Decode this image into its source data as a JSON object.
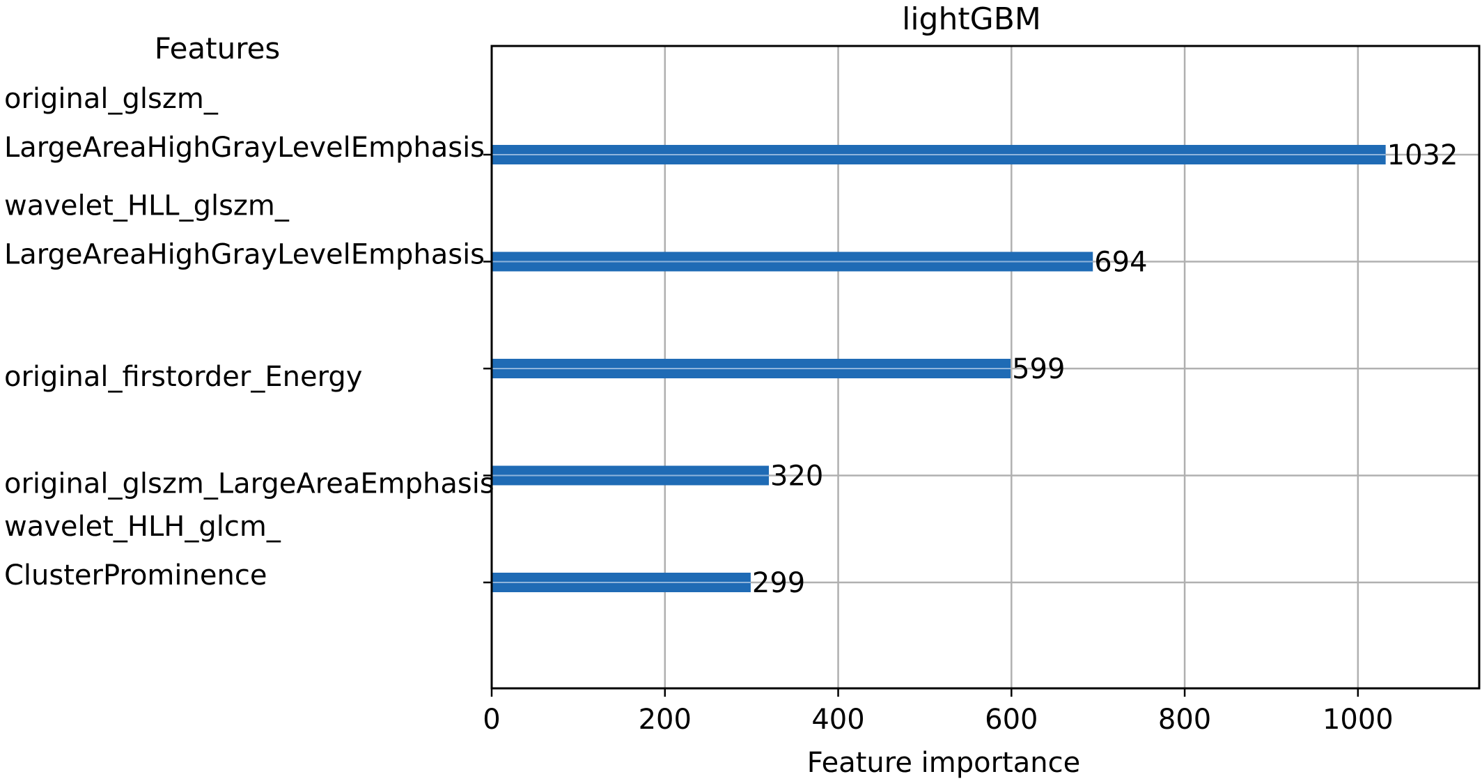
{
  "chart_data": {
    "type": "bar",
    "orientation": "horizontal",
    "title": "lightGBM",
    "ylabel": "Features",
    "xlabel": "Feature importance",
    "xlim": [
      0,
      1140
    ],
    "xticks": [
      0,
      200,
      400,
      600,
      800,
      1000
    ],
    "grid": true,
    "bar_color": "#1f6bb5",
    "categories": [
      [
        "original_glszm_",
        "LargeAreaHighGrayLevelEmphasis"
      ],
      [
        "wavelet_HLL_glszm_",
        "LargeAreaHighGrayLevelEmphasis"
      ],
      [
        "original_firstorder_Energy"
      ],
      [
        "original_glszm_LargeAreaEmphasis"
      ],
      [
        "wavelet_HLH_glcm_",
        "ClusterProminence"
      ]
    ],
    "values": [
      1032,
      694,
      599,
      320,
      299
    ],
    "data_labels": [
      "1032",
      "694",
      "599",
      "320",
      "299"
    ]
  }
}
